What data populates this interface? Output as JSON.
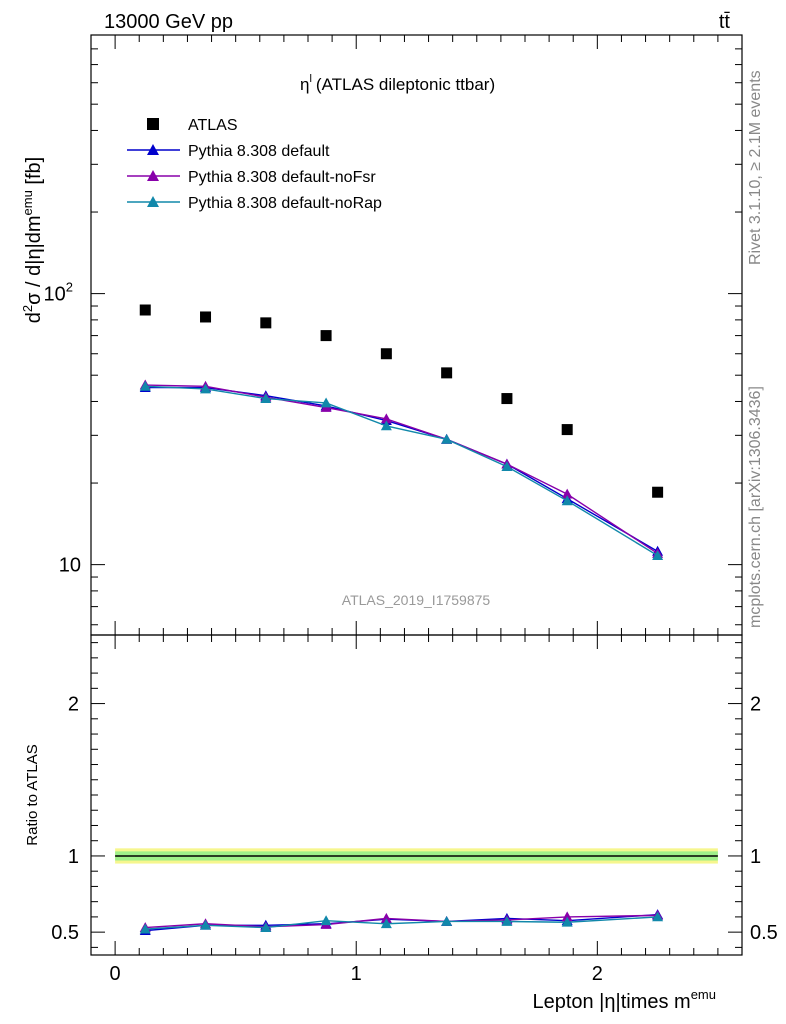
{
  "header": {
    "left": "13000 GeV pp",
    "right": "tt̄"
  },
  "side_labels": {
    "rivet": "Rivet 3.1.10, ≥ 2.1M events",
    "mcplots": "mcplots.cern.ch [arXiv:1306.3436]"
  },
  "chart_data": {
    "type": "scatter",
    "title": "η",
    "title_sup": "l",
    "title_rest": "(ATLAS dileptonic ttbar)",
    "analysis_label": "ATLAS_2019_I1759875",
    "ylabel_main": "d²σ / d|η|dm^emu [fb]",
    "ylabel_ratio": "Ratio to ATLAS",
    "xlabel": "Lepton |η|times m",
    "xlabel_sup": "emu",
    "xlim": [
      -0.1,
      2.6
    ],
    "ylim_main": [
      5.5,
      900
    ],
    "ylog_main": true,
    "ylim_ratio": [
      0.35,
      2.45
    ],
    "x_ticks": [
      0,
      1,
      2
    ],
    "y_ticks_main": [
      {
        "v": 10,
        "label": "10"
      },
      {
        "v": 100,
        "label": "10",
        "sup": "2"
      }
    ],
    "y_ticks_ratio": [
      0.5,
      1,
      2
    ],
    "x": [
      0.125,
      0.375,
      0.625,
      0.875,
      1.125,
      1.375,
      1.625,
      1.875,
      2.25
    ],
    "legend": [
      {
        "name": "ATLAS",
        "color": "#000000",
        "marker": "square"
      },
      {
        "name": "Pythia 8.308 default",
        "color": "#0000cc",
        "marker": "triangle"
      },
      {
        "name": "Pythia 8.308 default-noFsr",
        "color": "#8800aa",
        "marker": "triangle"
      },
      {
        "name": "Pythia 8.308 default-noRap",
        "color": "#1188aa",
        "marker": "triangle"
      }
    ],
    "series": [
      {
        "name": "ATLAS",
        "color": "#000000",
        "marker": "square",
        "values": [
          87,
          82,
          78,
          70,
          60,
          51,
          41,
          31.5,
          18.5
        ]
      },
      {
        "name": "Pythia 8.308 default",
        "color": "#0000cc",
        "marker": "triangle",
        "values": [
          45,
          45,
          42,
          38.5,
          34,
          29,
          23.5,
          17.5,
          11.2
        ]
      },
      {
        "name": "Pythia 8.308 default-noFsr",
        "color": "#8800aa",
        "marker": "triangle",
        "values": [
          46,
          45.5,
          41.5,
          38,
          34.5,
          29,
          23.5,
          18.2,
          11
        ],
        "ratio": [
          0.53,
          0.555,
          0.535,
          0.55,
          0.59,
          0.57,
          0.58,
          0.6,
          0.61
        ]
      },
      {
        "name": "Pythia 8.308 default-noRap",
        "color": "#1188aa",
        "marker": "triangle",
        "values": [
          45.5,
          44.5,
          41,
          39.5,
          32.5,
          29,
          23,
          17.2,
          10.8
        ],
        "ratio": [
          0.52,
          0.545,
          0.53,
          0.575,
          0.555,
          0.57,
          0.57,
          0.565,
          0.6
        ]
      }
    ],
    "ratio_default": [
      0.51,
      0.545,
      0.545,
      0.555,
      0.585,
      0.57,
      0.59,
      0.575,
      0.615
    ],
    "band_yellow": [
      0.95,
      1.05
    ],
    "band_green": [
      0.97,
      1.03
    ]
  }
}
